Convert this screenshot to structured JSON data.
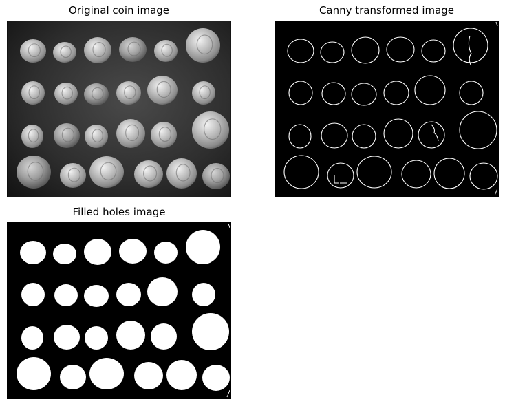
{
  "figure": {
    "panels": [
      {
        "title": "Original coin image"
      },
      {
        "title": "Canny transformed image"
      },
      {
        "title": "Filled holes image"
      }
    ]
  }
}
